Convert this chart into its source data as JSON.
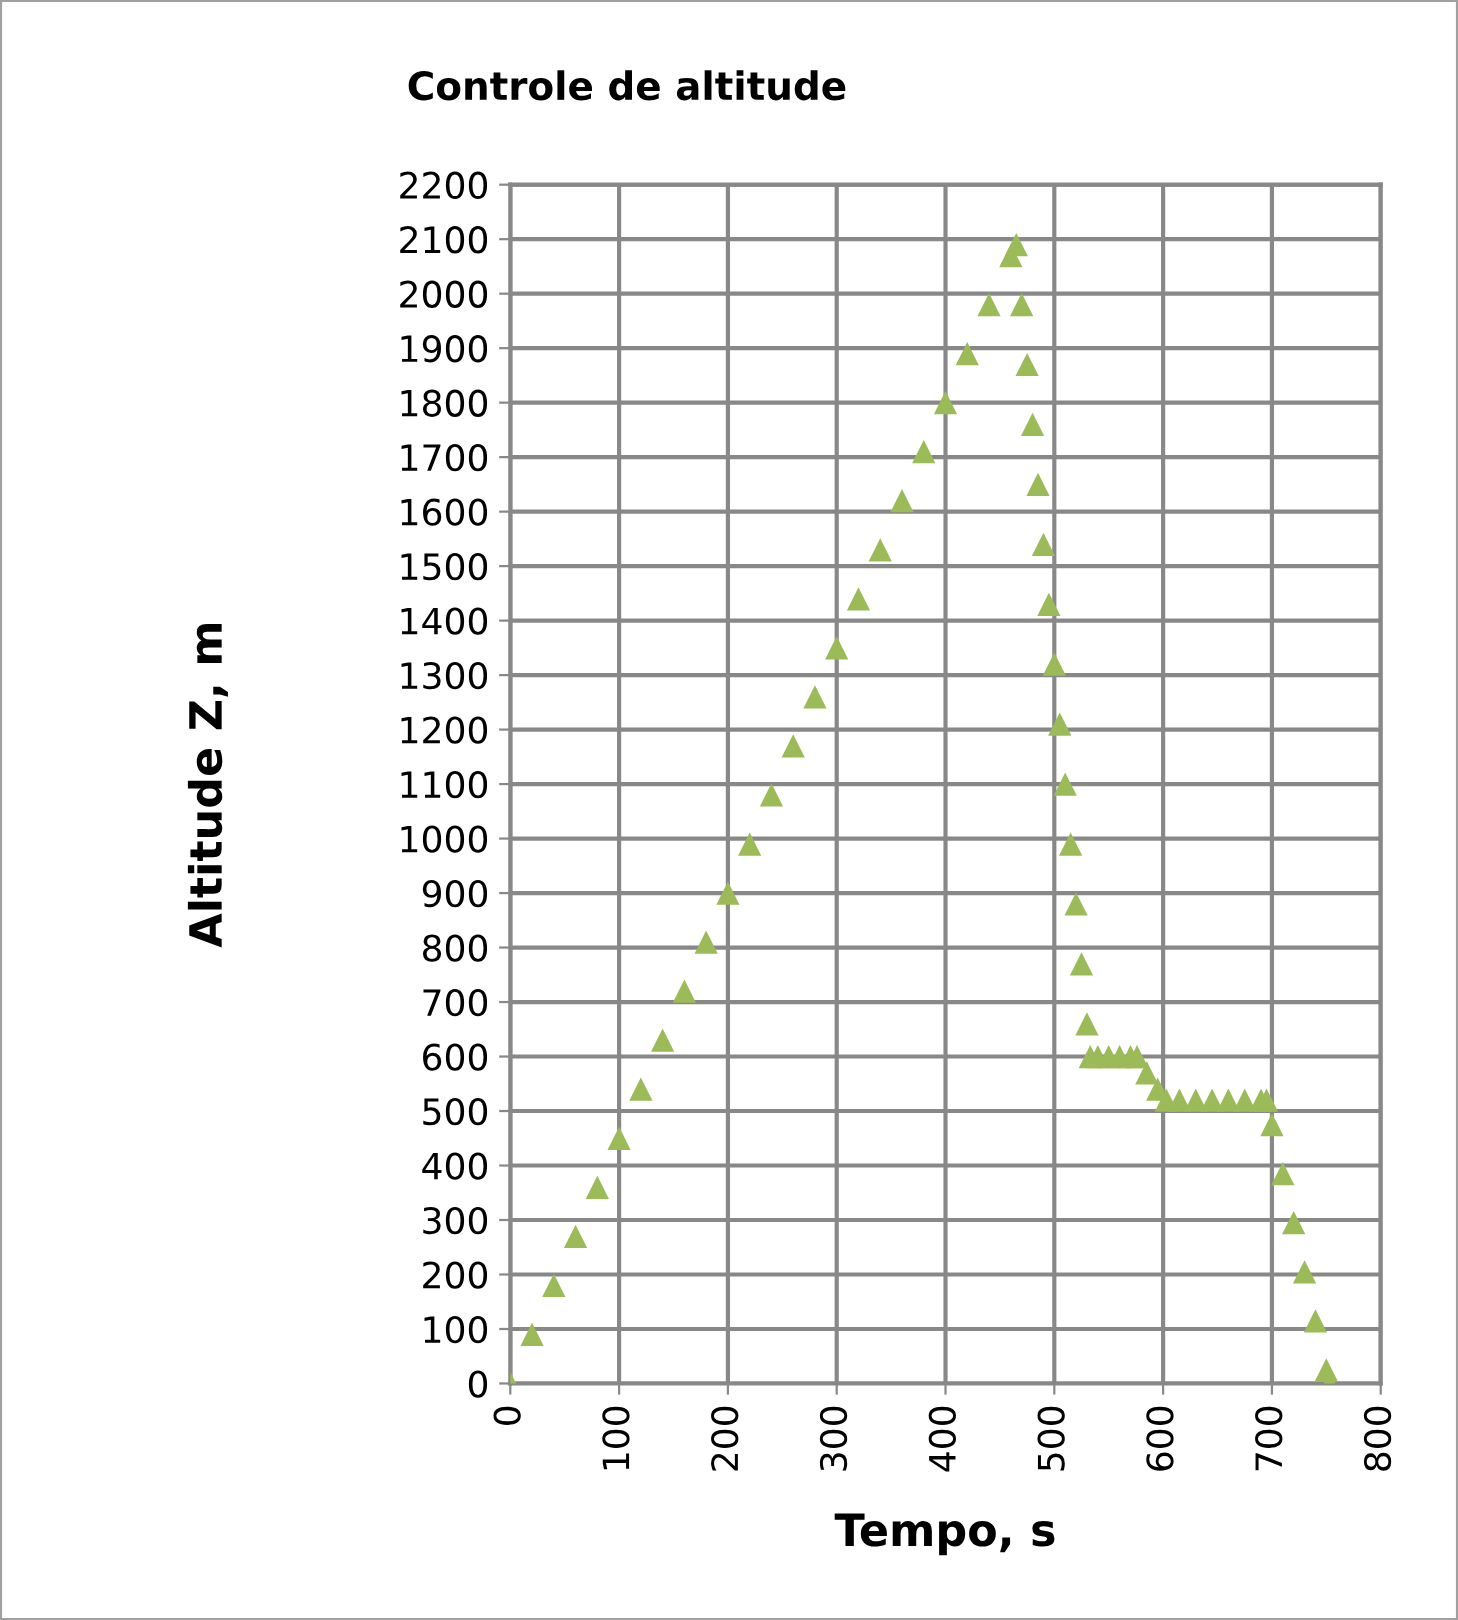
{
  "chart_data": {
    "type": "scatter",
    "title": "Controle de altitude",
    "xlabel": "Tempo, s",
    "ylabel": "Altitude Z, m",
    "series": [
      {
        "color": "#9bbb59",
        "x": [
          0,
          20,
          40,
          60,
          80,
          100,
          120,
          140,
          160,
          180,
          200,
          220,
          240,
          260,
          280,
          300,
          320,
          340,
          360,
          380,
          400,
          420,
          440,
          460,
          465,
          470,
          475,
          480,
          485,
          490,
          495,
          500,
          505,
          510,
          515,
          520,
          525,
          530,
          533,
          540,
          550,
          560,
          570,
          576,
          585,
          595,
          603,
          615,
          630,
          645,
          660,
          675,
          690,
          695,
          700,
          710,
          720,
          730,
          740,
          750,
          753
        ],
        "values": [
          0,
          90,
          180,
          270,
          360,
          450,
          540,
          630,
          720,
          810,
          900,
          990,
          1080,
          1170,
          1260,
          1350,
          1440,
          1530,
          1620,
          1710,
          1800,
          1890,
          1980,
          2070,
          2090,
          1980,
          1870,
          1760,
          1650,
          1540,
          1430,
          1320,
          1210,
          1100,
          990,
          880,
          770,
          660,
          600,
          600,
          600,
          600,
          600,
          600,
          570,
          540,
          520,
          520,
          520,
          520,
          520,
          520,
          520,
          520,
          475,
          385,
          295,
          205,
          115,
          25,
          0
        ]
      }
    ],
    "xlim": [
      0,
      800
    ],
    "xticks": [
      0,
      100,
      200,
      300,
      400,
      500,
      600,
      700,
      800
    ],
    "ylim": [
      0,
      2200
    ],
    "yticks": [
      0,
      100,
      200,
      300,
      400,
      500,
      600,
      700,
      800,
      900,
      1000,
      1100,
      1200,
      1300,
      1400,
      1500,
      1600,
      1700,
      1800,
      1900,
      2000,
      2100,
      2200
    ],
    "grid": true,
    "marker": "triangle"
  }
}
